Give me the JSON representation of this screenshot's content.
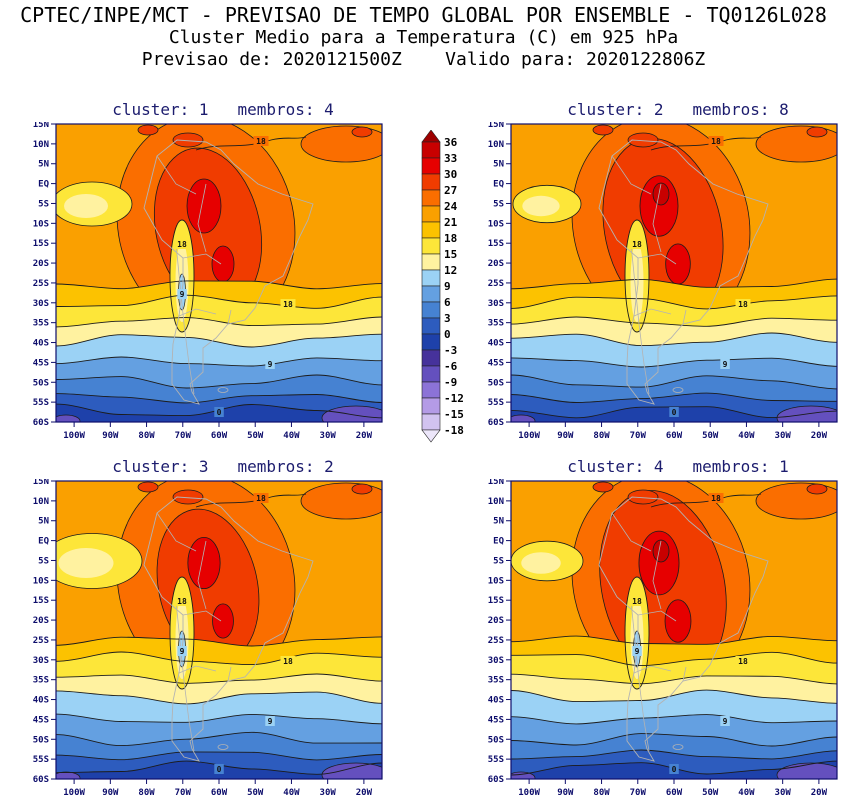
{
  "header": {
    "line1": "CPTEC/INPE/MCT - PREVISAO DE TEMPO GLOBAL POR ENSEMBLE - TQ0126L028",
    "line2": "Cluster Medio para a Temperatura (C) em 925 hPa",
    "line3": "Previsao de: 2020121500Z    Valido para: 2020122806Z"
  },
  "panels": [
    {
      "id": 1,
      "title": "cluster: 1   membros: 4",
      "cluster": "1",
      "membros": "4"
    },
    {
      "id": 2,
      "title": "cluster: 2   membros: 8",
      "cluster": "2",
      "membros": "8"
    },
    {
      "id": 3,
      "title": "cluster: 3   membros: 2",
      "cluster": "3",
      "membros": "2"
    },
    {
      "id": 4,
      "title": "cluster: 4   membros: 1",
      "cluster": "4",
      "membros": "1"
    }
  ],
  "axes": {
    "lat_ticks": [
      "15N",
      "10N",
      "5N",
      "EQ",
      "5S",
      "10S",
      "15S",
      "20S",
      "25S",
      "30S",
      "35S",
      "40S",
      "45S",
      "50S",
      "55S",
      "60S"
    ],
    "lon_ticks": [
      "100W",
      "90W",
      "80W",
      "70W",
      "60W",
      "50W",
      "40W",
      "30W",
      "20W"
    ]
  },
  "colorbar": {
    "labels": [
      "36",
      "33",
      "30",
      "27",
      "24",
      "21",
      "18",
      "15",
      "12",
      "9",
      "6",
      "3",
      "0",
      "-3",
      "-6",
      "-9",
      "-12",
      "-15",
      "-18"
    ],
    "colors": [
      "#9e0000",
      "#c80000",
      "#e60000",
      "#f03c00",
      "#fa6e00",
      "#faa000",
      "#fcc200",
      "#fde639",
      "#fff2a0",
      "#9bd2f5",
      "#64a0e1",
      "#4682d2",
      "#2d5cbe",
      "#1e41aa",
      "#46329b",
      "#6450be",
      "#8c73d7",
      "#b49be6",
      "#d2c3f0",
      "#ece6fa"
    ]
  },
  "contour_labels": {
    "warm": "18",
    "mid": "9",
    "cold": "0"
  },
  "chart_data": {
    "type": "heatmap",
    "title": "Cluster Medio para a Temperatura (C) em 925 hPa",
    "model": "CPTEC/INPE/MCT - PREVISAO DE TEMPO GLOBAL POR ENSEMBLE - TQ0126L028",
    "init_time": "2020121500Z",
    "valid_time": "2020122806Z",
    "units": "C",
    "panels": [
      {
        "cluster": 1,
        "membros": 4
      },
      {
        "cluster": 2,
        "membros": 8
      },
      {
        "cluster": 3,
        "membros": 2
      },
      {
        "cluster": 4,
        "membros": 1
      }
    ],
    "x_ticks": [
      "100W",
      "90W",
      "80W",
      "70W",
      "60W",
      "50W",
      "40W",
      "30W",
      "20W"
    ],
    "y_ticks": [
      "15N",
      "10N",
      "5N",
      "EQ",
      "5S",
      "10S",
      "15S",
      "20S",
      "25S",
      "30S",
      "35S",
      "40S",
      "45S",
      "50S",
      "55S",
      "60S"
    ],
    "levels": [
      36,
      33,
      30,
      27,
      24,
      21,
      18,
      15,
      12,
      9,
      6,
      3,
      0,
      -3,
      -6,
      -9,
      -12,
      -15,
      -18
    ],
    "contour_interval": 3,
    "labeled_contours": [
      18,
      9,
      0
    ],
    "approx_zonal_mean_temp_C": {
      "15N": 24,
      "10N": 25,
      "5N": 25,
      "EQ": 26,
      "5S": 26,
      "10S": 27,
      "15S": 26,
      "20S": 24,
      "25S": 22,
      "30S": 18,
      "35S": 14,
      "40S": 10,
      "45S": 8,
      "50S": 5,
      "55S": 2,
      "60S": -1
    },
    "notes": "Four-panel 925 hPa temperature cluster means over South America: 27-33C warm core over central Brazil, 18C contour near 30S, 9C near 43S, 0C near 56S, cool Andes tongue along 70W"
  }
}
